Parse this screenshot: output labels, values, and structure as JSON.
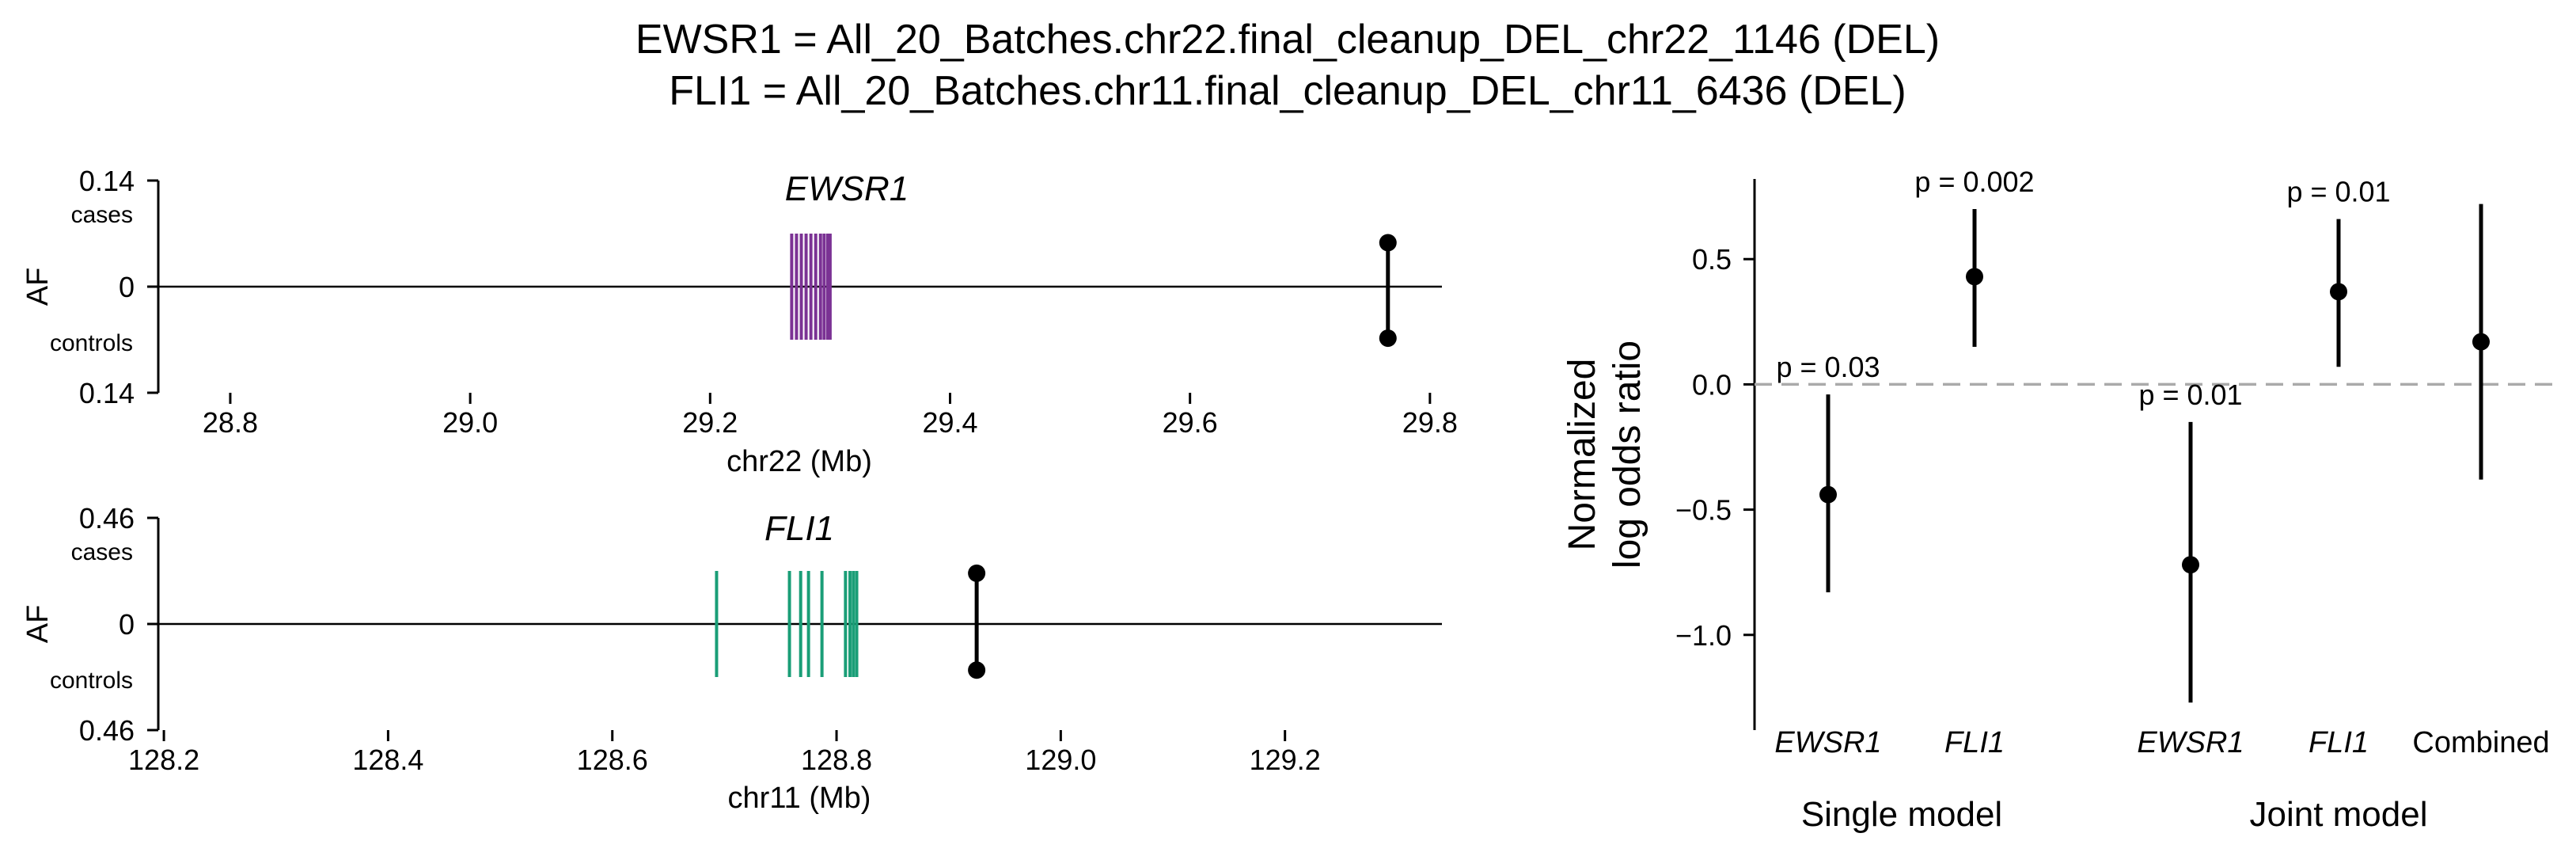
{
  "title": {
    "line1": "EWSR1 = All_20_Batches.chr22.final_cleanup_DEL_chr22_1146 (DEL)",
    "line2": "FLI1 = All_20_Batches.chr11.final_cleanup_DEL_chr11_6436 (DEL)"
  },
  "chart_data": [
    {
      "type": "scatter",
      "panel": "EWSR1 allele frequency",
      "gene_label": "EWSR1",
      "ylabel": "AF",
      "y_top_label": "cases",
      "y_bottom_label": "controls",
      "yticks": [
        "0.14",
        "0",
        "0.14"
      ],
      "ylim": [
        -0.14,
        0.14
      ],
      "xlabel": "chr22 (Mb)",
      "xlim": [
        28.74,
        29.81
      ],
      "xticks": [
        "28.8",
        "29.0",
        "29.2",
        "29.4",
        "29.6",
        "29.8"
      ],
      "gene_color": "#7b3294",
      "exons_mb": [
        29.268,
        29.272,
        29.276,
        29.28,
        29.284,
        29.288,
        29.292,
        29.295,
        29.298,
        29.3
      ],
      "gene_span_af": [
        -0.07,
        0.07
      ],
      "variant": {
        "x_mb": 29.765,
        "af_cases": 0.058,
        "af_controls": 0.068
      }
    },
    {
      "type": "scatter",
      "panel": "FLI1 allele frequency",
      "gene_label": "FLI1",
      "ylabel": "AF",
      "y_top_label": "cases",
      "y_bottom_label": "controls",
      "yticks": [
        "0.46",
        "0",
        "0.46"
      ],
      "ylim": [
        -0.46,
        0.46
      ],
      "xlabel": "chr11 (Mb)",
      "xlim": [
        128.195,
        129.34
      ],
      "xticks": [
        "128.2",
        "128.4",
        "128.6",
        "128.8",
        "129.0",
        "129.2"
      ],
      "gene_color": "#1a9e77",
      "exons_mb": [
        128.693,
        128.758,
        128.768,
        128.775,
        128.787,
        128.808,
        128.812,
        128.815,
        128.818
      ],
      "gene_span_af": [
        -0.23,
        0.23
      ],
      "variant": {
        "x_mb": 128.925,
        "af_cases": 0.22,
        "af_controls": 0.2
      }
    },
    {
      "type": "scatter",
      "panel": "log odds ratios",
      "ylabel_line1": "Normalized",
      "ylabel_line2": "log odds ratio",
      "ylim": [
        -1.38,
        0.82
      ],
      "yticks": [
        0.5,
        0.0,
        -0.5,
        -1.0
      ],
      "ytick_labels": [
        "0.5",
        "0.0",
        "−0.5",
        "−1.0"
      ],
      "reference_line": 0,
      "reference_line_color": "#aaaaaa",
      "groups": [
        "Single model",
        "Joint model"
      ],
      "points": [
        {
          "label": "EWSR1",
          "italic": true,
          "group": "Single model",
          "estimate": -0.44,
          "ci": [
            -0.83,
            -0.04
          ],
          "p_label": "p = 0.03"
        },
        {
          "label": "FLI1",
          "italic": true,
          "group": "Single model",
          "estimate": 0.43,
          "ci": [
            0.15,
            0.7
          ],
          "p_label": "p = 0.002"
        },
        {
          "label": "EWSR1",
          "italic": true,
          "group": "Joint model",
          "estimate": -0.72,
          "ci": [
            -1.27,
            -0.15
          ],
          "p_label": "p = 0.01"
        },
        {
          "label": "FLI1",
          "italic": true,
          "group": "Joint model",
          "estimate": 0.37,
          "ci": [
            0.07,
            0.66
          ],
          "p_label": "p = 0.01"
        },
        {
          "label": "Combined",
          "italic": false,
          "group": "Joint model",
          "estimate": 0.17,
          "ci": [
            -0.38,
            0.72
          ],
          "p_label": ""
        }
      ]
    }
  ]
}
